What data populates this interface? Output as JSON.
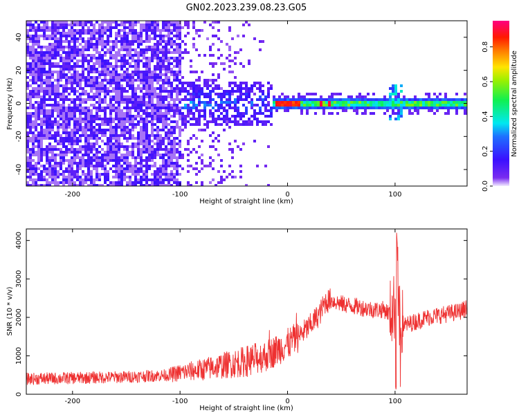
{
  "title": "GN02.2023.239.08.23.G05",
  "colors": {
    "line": "#ee3030",
    "axis": "#000000",
    "spectrogram_background": "#ffffff"
  },
  "chart_data": [
    {
      "type": "heatmap",
      "xlabel": "Height of straight line (km)",
      "ylabel": "Frequency (Hz)",
      "xlim": [
        -243,
        167
      ],
      "ylim": [
        -50,
        50
      ],
      "x_ticks": [
        -200,
        -100,
        0,
        100
      ],
      "y_ticks": [
        -40,
        -20,
        0,
        20,
        40
      ],
      "colorbar": {
        "label": "Normalized spectral amplitude",
        "range": [
          0,
          0.95
        ],
        "ticks": [
          0.0,
          0.2,
          0.4,
          0.6,
          0.8
        ],
        "colormap": "rainbow (purple-blue-cyan-green-yellow-red-magenta)"
      },
      "features": [
        {
          "x_range": [
            -243,
            -100
          ],
          "freq_range": [
            -50,
            50
          ],
          "amplitude": "low (0.05-0.15), dense noise"
        },
        {
          "x_range": [
            -100,
            -20
          ],
          "freq_range": [
            -50,
            50
          ],
          "amplitude": "sparse low noise (~0.05)"
        },
        {
          "x_range": [
            -100,
            -15
          ],
          "freq_range": [
            -15,
            15
          ],
          "amplitude": "0.1-0.4 band, peaks ~0.45"
        },
        {
          "x_range": [
            -20,
            167
          ],
          "freq_center": 0,
          "freq_width": 4,
          "amplitude": "0.3-0.9, peaks ~0.9 at -10 to 10 and ~35"
        },
        {
          "x_range": [
            95,
            105
          ],
          "freq_range": [
            -10,
            12
          ],
          "amplitude": "disturbance ~0.3"
        }
      ]
    },
    {
      "type": "line",
      "xlabel": "Height of straight line (km)",
      "ylabel": "SNR (10 * v/v)",
      "xlim": [
        -243,
        167
      ],
      "ylim": [
        0,
        4300
      ],
      "x_ticks": [
        -200,
        -100,
        0,
        100
      ],
      "y_ticks": [
        0,
        1000,
        2000,
        3000,
        4000
      ],
      "x": [
        -243,
        -200,
        -150,
        -110,
        -100,
        -80,
        -60,
        -40,
        -20,
        -10,
        0,
        10,
        20,
        30,
        35,
        40,
        50,
        60,
        70,
        80,
        90,
        95,
        100,
        102,
        103,
        105,
        110,
        120,
        130,
        140,
        150,
        160,
        167
      ],
      "y": [
        400,
        420,
        450,
        500,
        560,
        640,
        750,
        850,
        1000,
        1150,
        1300,
        1500,
        1750,
        2100,
        2400,
        2450,
        2350,
        2300,
        2250,
        2200,
        2200,
        2100,
        2300,
        4300,
        2000,
        1900,
        1800,
        1900,
        2000,
        2050,
        2100,
        2150,
        2250
      ],
      "noise_amplitude": "about ±150 at left, ±400 near -40 to 0, ±200 at right; deep dips to ~50 near 102"
    }
  ]
}
